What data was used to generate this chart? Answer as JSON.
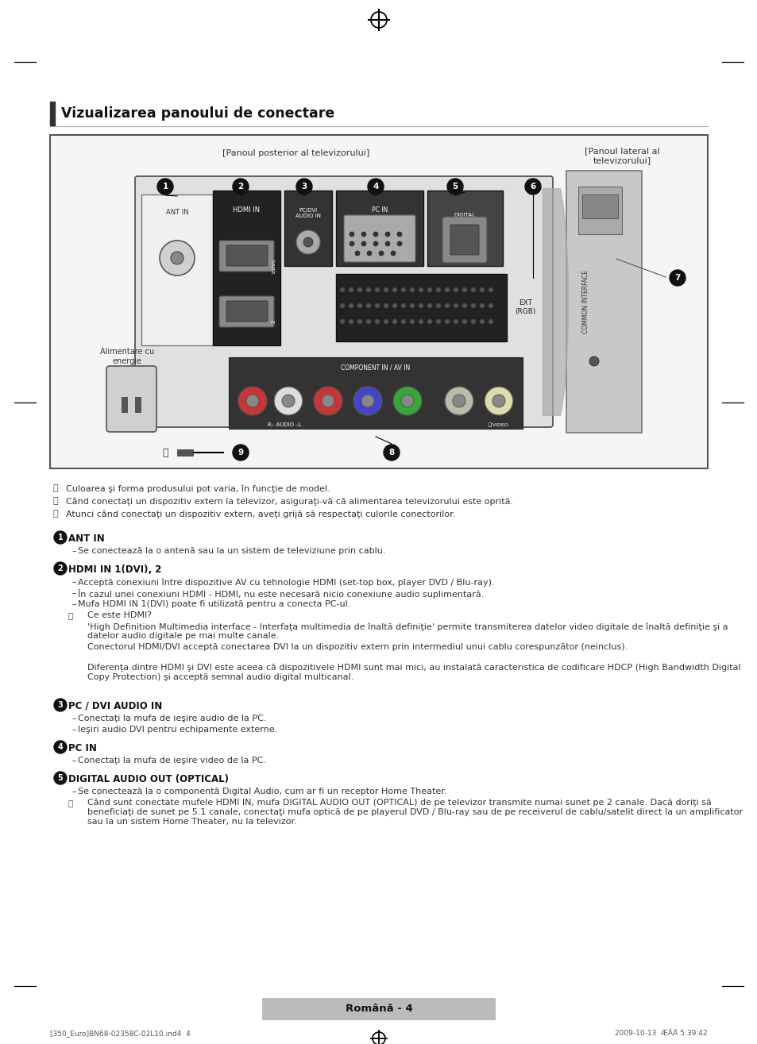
{
  "page_bg": "#ffffff",
  "title": "Vizualizarea panoului de conectare",
  "diagram_label_posterior": "[Panoul posterior al televizorului]",
  "diagram_label_lateral": "[Panoul lateral al\ntelevizorului]",
  "note_icon": "ⓘ",
  "notes": [
    "Culoarea şi forma produsului pot varia, în funcţie de model.",
    "Când conectaţi un dispozitiv extern la televizor, asiguraţi-vă că alimentarea televizorului este oprită.",
    "Atunci când conectaţi un dispozitiv extern, aveţi grijă să respectaţi culorile conectorilor."
  ],
  "sections": [
    {
      "num": "1",
      "title": "ANT IN",
      "title_bold_parts": [
        "ANT IN"
      ],
      "bullets": [
        [
          "Se conectează la o antenă sau la un sistem de televiziune prin cablu."
        ]
      ],
      "notes": []
    },
    {
      "num": "2",
      "title": "HDMI IN 1(DVI), 2",
      "title_bold_parts": [
        "HDMI IN 1(DVI), 2"
      ],
      "bullets": [
        [
          "Acceptă conexiuni între dispozitive AV cu tehnologie HDMI (set-top box, player DVD / Blu-ray)."
        ],
        [
          "În cazul unei conexiuni HDMI - HDMI, nu este necesară nicio conexiune audio suplimentară."
        ],
        [
          "Mufa ",
          "HDMI IN 1(DVI)",
          " poate fi utilizată pentru a conecta PC-ul."
        ]
      ],
      "notes": [
        [
          "Ce este HDMI?"
        ],
        [
          "'High Definition Multimedia interface - Interfaţa multimedia de înaltă definiţie' permite transmiterea datelor video digitale de înaltă definiţie şi a datelor audio digitale pe mai multe canale."
        ],
        [
          "Conectorul HDMI/DVI acceptă conectarea DVI la un dispozitiv extern prin intermediul unui cablu corespunzător (neinclus)."
        ],
        [
          "Diferenţa dintre HDMI şi DVI este aceea că dispozitivele HDMI sunt mai mici, au instalată caracteristica de codificare HDCP (High Bandwidth Digital Copy Protection) şi acceptă semnal audio digital multicanal."
        ]
      ]
    },
    {
      "num": "3",
      "title": "PC / DVI AUDIO IN",
      "title_bold_parts": [
        "PC / DVI AUDIO IN"
      ],
      "bullets": [
        [
          "Conectaţi la mufa de ieşire audio de la PC."
        ],
        [
          "Ieşiri audio DVI pentru echipamente externe."
        ]
      ],
      "notes": []
    },
    {
      "num": "4",
      "title": "PC IN",
      "title_bold_parts": [
        "PC IN"
      ],
      "bullets": [
        [
          "Conectaţi la mufa de ieşire video de la PC."
        ]
      ],
      "notes": []
    },
    {
      "num": "5",
      "title": "DIGITAL AUDIO OUT (OPTICAL)",
      "title_bold_parts": [
        "DIGITAL AUDIO OUT (OPTICAL)"
      ],
      "bullets": [
        [
          "Se conectează la o componentă Digital Audio, cum ar fi un receptor Home Theater."
        ]
      ],
      "notes": [
        [
          "Când sunt conectate mufele HDMI IN, mufa ",
          "DIGITAL AUDIO OUT (OPTICAL)",
          " de pe televizor transmite numai sunet pe 2 canale. Dacă doriţi să beneficiaţi de sunet pe 5.1 canale, conectaţi mufa optică de pe playerul DVD / Blu-ray sau de pe receiverul de cablu/satelit direct la un amplificator sau la un sistem Home Theater, nu la televizor."
        ]
      ]
    }
  ],
  "footer_text": "Română - 4",
  "page_footer_left": "[350_Euro]BN68-02358C-02L10.ind4  4",
  "page_footer_right": "2009-10-13  ÆÁÄ 5:39:42"
}
